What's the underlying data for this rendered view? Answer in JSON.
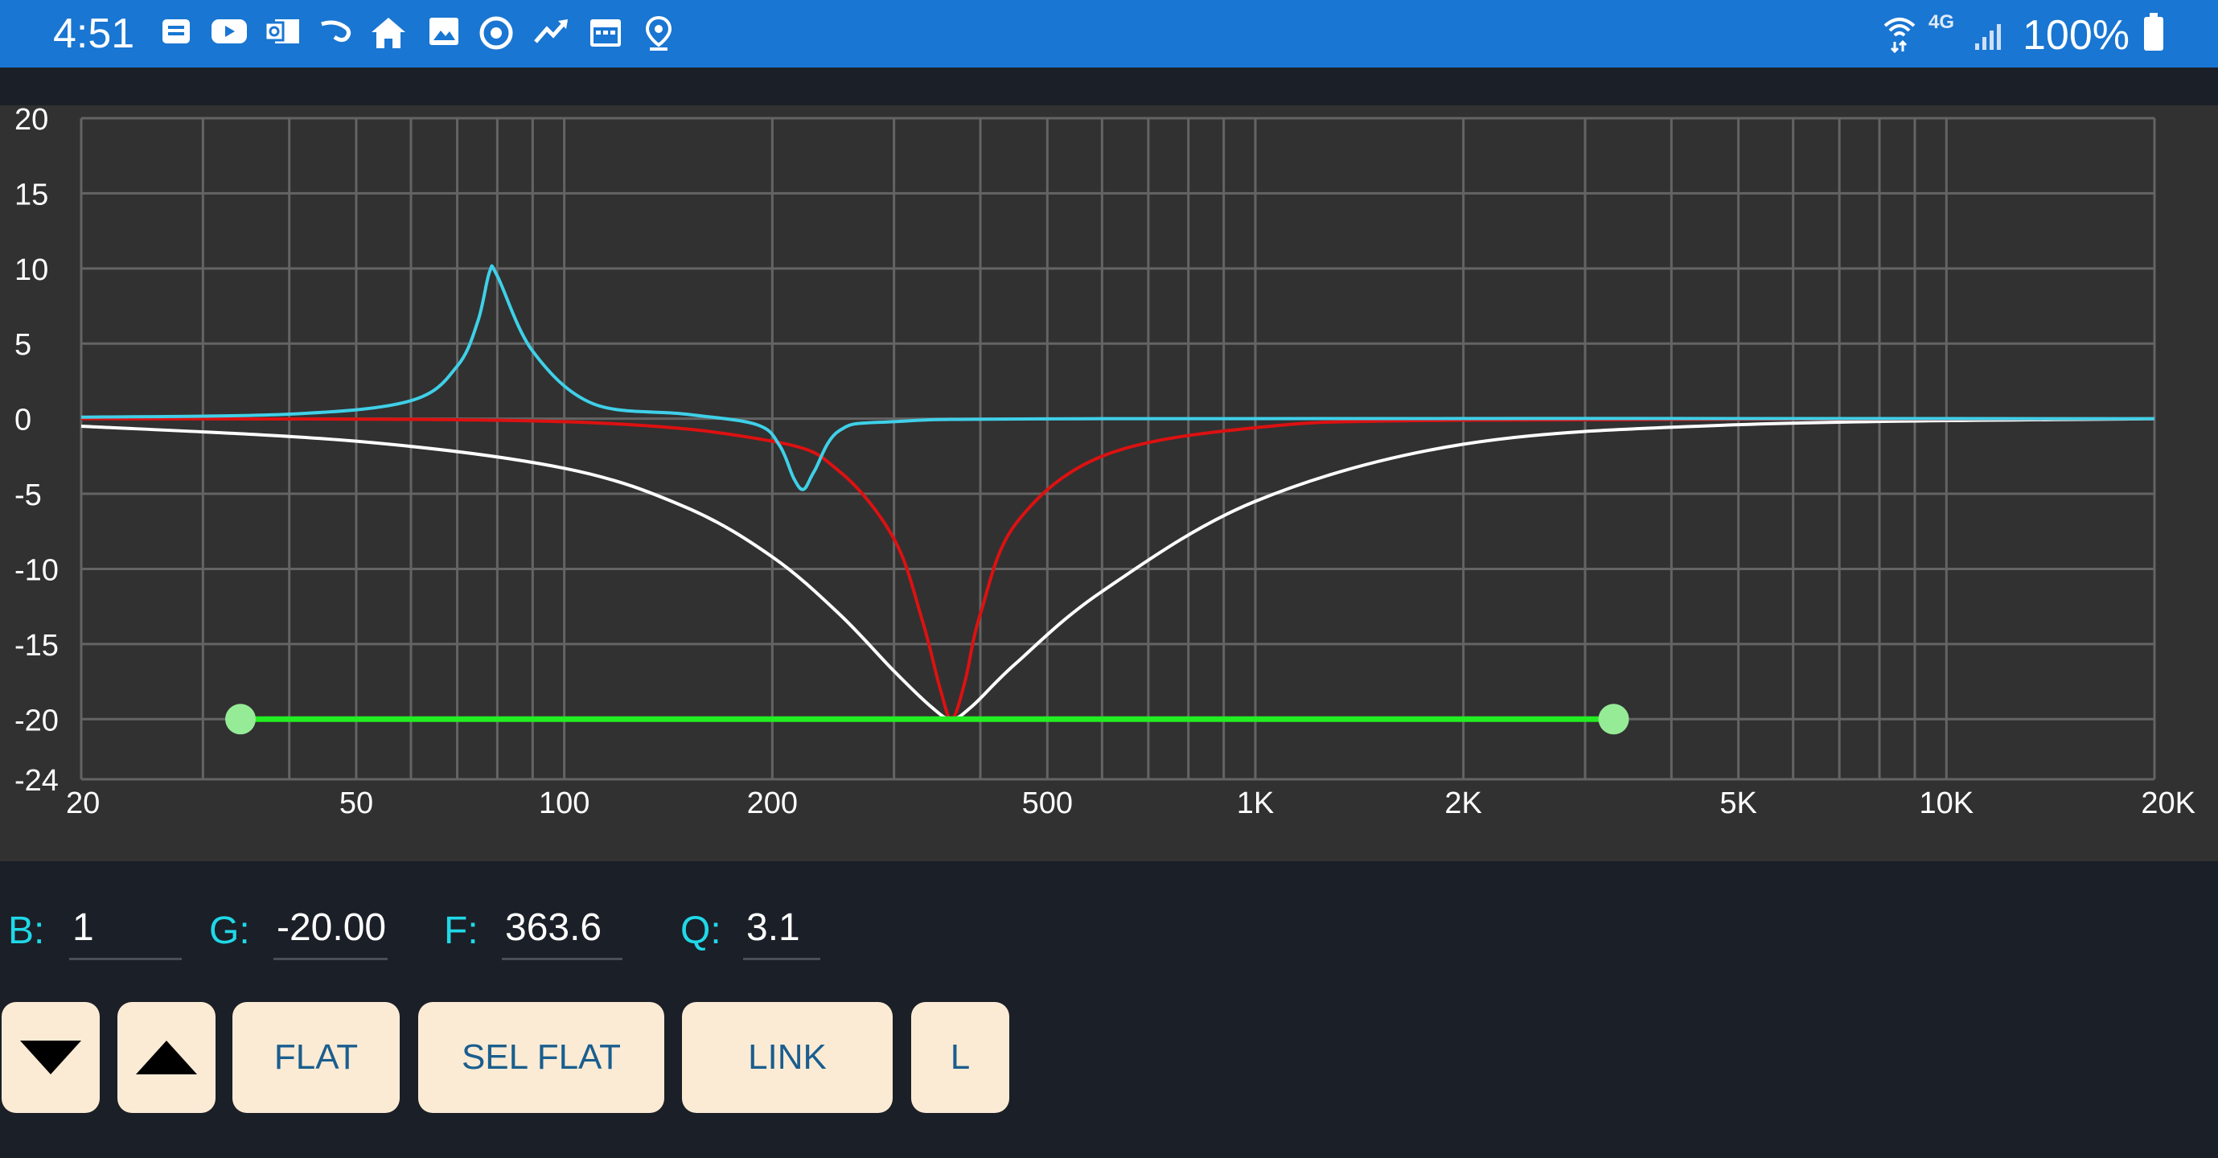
{
  "status_bar": {
    "time": "4:51",
    "notification_icons": [
      "message-icon",
      "youtube-icon",
      "outlook-icon",
      "link-icon",
      "home-icon",
      "image-icon",
      "sync-icon",
      "trending-icon",
      "calendar-icon",
      "location-icon"
    ],
    "network_label": "4G",
    "battery_percent": "100%",
    "background_color": "#1976d2"
  },
  "graph": {
    "y_ticks": [
      "20",
      "15",
      "10",
      "5",
      "0",
      "-5",
      "-10",
      "-15",
      "-20",
      "-24"
    ],
    "x_ticks": [
      "20",
      "50",
      "100",
      "200",
      "500",
      "1K",
      "2K",
      "5K",
      "10K",
      "20K"
    ],
    "background_color": "#313131",
    "grid_color": "#646464"
  },
  "chart_data": {
    "type": "line",
    "xscale": "log",
    "xlim": [
      20,
      20000
    ],
    "ylim": [
      -24,
      20
    ],
    "series": [
      {
        "color": "#ffffff",
        "x": [
          20,
          50,
          100,
          150,
          200,
          250,
          300,
          340,
          363.6,
          390,
          450,
          600,
          1000,
          2000,
          5000,
          20000
        ],
        "y": [
          -0.5,
          -1.5,
          -3.3,
          -5.9,
          -9.2,
          -13.0,
          -16.8,
          -19.2,
          -20.0,
          -19.1,
          -16.3,
          -11.5,
          -5.5,
          -1.7,
          -0.4,
          0
        ]
      },
      {
        "color": "#dd1111",
        "x": [
          20,
          100,
          200,
          250,
          300,
          330,
          350,
          363.6,
          380,
          400,
          450,
          600,
          1000,
          2000,
          20000
        ],
        "y": [
          0,
          -0.2,
          -1.5,
          -3.5,
          -8.0,
          -13.5,
          -18.0,
          -20.0,
          -17.5,
          -13.0,
          -7.0,
          -2.5,
          -0.6,
          -0.1,
          0
        ]
      },
      {
        "color": "#3fd0e8",
        "x": [
          20,
          40,
          60,
          70,
          75,
          78,
          80,
          90,
          110,
          150,
          190,
          205,
          215,
          222,
          230,
          250,
          300,
          600,
          20000
        ],
        "y": [
          0.1,
          0.3,
          1.2,
          3.5,
          6.5,
          9.8,
          9.5,
          4.5,
          1.0,
          0.3,
          -0.4,
          -1.8,
          -4.0,
          -4.7,
          -3.5,
          -0.8,
          -0.2,
          0,
          0
        ]
      }
    ],
    "markers": [
      {
        "name": "band-start",
        "color": "#96eb96",
        "x": 34,
        "y": -20
      },
      {
        "name": "band-end",
        "color": "#96eb96",
        "x": 3300,
        "y": -20
      }
    ],
    "band_line": {
      "color": "#22ee22",
      "x_start": 34,
      "x_end": 3300,
      "y": -20
    }
  },
  "fields": {
    "b_label": "B:",
    "b_value": "1",
    "g_label": "G:",
    "g_value": "-20.00",
    "f_label": "F:",
    "f_value": "363.6",
    "q_label": "Q:",
    "q_value": "3.1"
  },
  "buttons": {
    "flat": "FLAT",
    "sel_flat": "SEL FLAT",
    "link": "LINK",
    "l": "L"
  }
}
